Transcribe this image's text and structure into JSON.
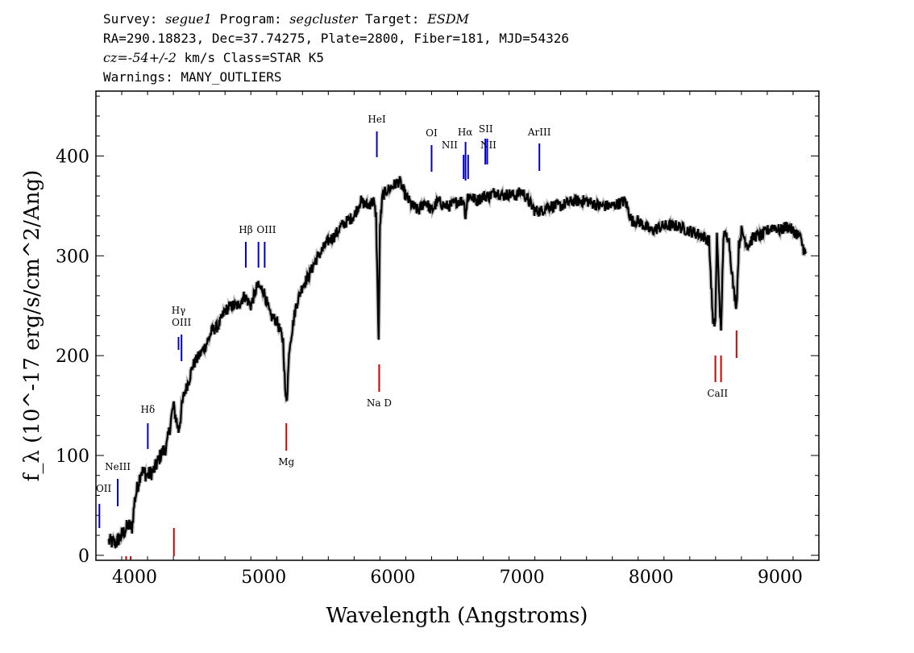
{
  "header": {
    "survey_label": "Survey:",
    "survey_value": "segue1",
    "program_label": "Program:",
    "program_value": "segcluster",
    "target_label": "Target:",
    "target_value": "ESDM",
    "line2": "RA=290.18823, Dec=37.74275, Plate=2800, Fiber=181, MJD=54326",
    "line3_cz": "cz=-54+/-2",
    "line3_rest": " km/s Class=STAR K5",
    "line4": "Warnings: MANY_OUTLIERS"
  },
  "chart_data": {
    "type": "line",
    "xlabel": "Wavelength (Angstroms)",
    "ylabel": "f_λ (10^-17 erg/s/cm^2/Ang)",
    "xlim": [
      3700,
      9300
    ],
    "ylim": [
      -5,
      465
    ],
    "xticks": [
      4000,
      5000,
      6000,
      7000,
      8000,
      9000
    ],
    "yticks": [
      0,
      100,
      200,
      300,
      400
    ],
    "grid": false,
    "series": [
      {
        "x": [
          3800,
          3850,
          3900,
          3950,
          3980,
          4000,
          4050,
          4100,
          4150,
          4200,
          4250,
          4300,
          4340,
          4380,
          4420,
          4450,
          4500,
          4550,
          4600,
          4650,
          4700,
          4750,
          4800,
          4850,
          4900,
          4950,
          5000,
          5050,
          5100,
          5150,
          5170,
          5180,
          5200,
          5250,
          5300,
          5350,
          5400,
          5450,
          5500,
          5550,
          5600,
          5650,
          5700,
          5750,
          5800,
          5850,
          5870,
          5890,
          5900,
          5920,
          5950,
          6000,
          6050,
          6100,
          6150,
          6200,
          6250,
          6300,
          6350,
          6400,
          6450,
          6500,
          6550,
          6563,
          6580,
          6600,
          6650,
          6700,
          6750,
          6800,
          6850,
          6900,
          6950,
          7000,
          7050,
          7100,
          7150,
          7200,
          7300,
          7400,
          7500,
          7600,
          7700,
          7800,
          7850,
          7900,
          7950,
          8000,
          8100,
          8200,
          8300,
          8400,
          8450,
          8480,
          8498,
          8510,
          8542,
          8560,
          8600,
          8640,
          8662,
          8680,
          8700,
          8750,
          8800,
          8850,
          8900,
          8950,
          9000,
          9050,
          9100,
          9150,
          9200
        ],
        "values": [
          14,
          12,
          20,
          30,
          28,
          55,
          85,
          80,
          85,
          100,
          110,
          150,
          125,
          160,
          175,
          190,
          200,
          210,
          225,
          230,
          245,
          250,
          250,
          260,
          250,
          270,
          265,
          240,
          235,
          215,
          155,
          160,
          210,
          250,
          270,
          280,
          295,
          305,
          315,
          320,
          330,
          335,
          340,
          355,
          350,
          355,
          340,
          215,
          330,
          360,
          365,
          370,
          375,
          360,
          350,
          345,
          355,
          345,
          355,
          350,
          350,
          355,
          355,
          340,
          360,
          360,
          355,
          360,
          360,
          365,
          360,
          362,
          360,
          365,
          355,
          345,
          345,
          350,
          350,
          355,
          355,
          350,
          350,
          355,
          335,
          335,
          330,
          325,
          330,
          330,
          325,
          320,
          315,
          230,
          235,
          320,
          220,
          320,
          320,
          265,
          250,
          310,
          325,
          310,
          320,
          320,
          325,
          330,
          325,
          330,
          325,
          320,
          300
        ]
      }
    ],
    "annotations": {
      "emission_lines": [
        {
          "label": "OII",
          "x": 3727
        },
        {
          "label": "NeIII",
          "x": 3869
        },
        {
          "label": "Hδ",
          "x": 4102
        },
        {
          "label": "Hγ",
          "x": 4340
        },
        {
          "label": "OIII",
          "x": 4363
        },
        {
          "label": "Hβ",
          "x": 4861
        },
        {
          "label": "OIII",
          "x": 4959
        },
        {
          "label": "OIII",
          "x": 5007
        },
        {
          "label": "HeI",
          "x": 5876
        },
        {
          "label": "OI",
          "x": 6300
        },
        {
          "label": "NII",
          "x": 6548
        },
        {
          "label": "Hα",
          "x": 6563
        },
        {
          "label": "NII",
          "x": 6583
        },
        {
          "label": "SII",
          "x": 6716
        },
        {
          "label": "SII",
          "x": 6731
        },
        {
          "label": "ArIII",
          "x": 7135
        }
      ],
      "absorption_lines": [
        {
          "label": "",
          "x": 3934
        },
        {
          "label": "",
          "x": 3969
        },
        {
          "label": "",
          "x": 4304
        },
        {
          "label": "Mg",
          "x": 5175
        },
        {
          "label": "Na D",
          "x": 5894
        },
        {
          "label": "CaII",
          "x": 8498
        },
        {
          "label": "",
          "x": 8542
        },
        {
          "label": "",
          "x": 8662
        }
      ]
    }
  }
}
